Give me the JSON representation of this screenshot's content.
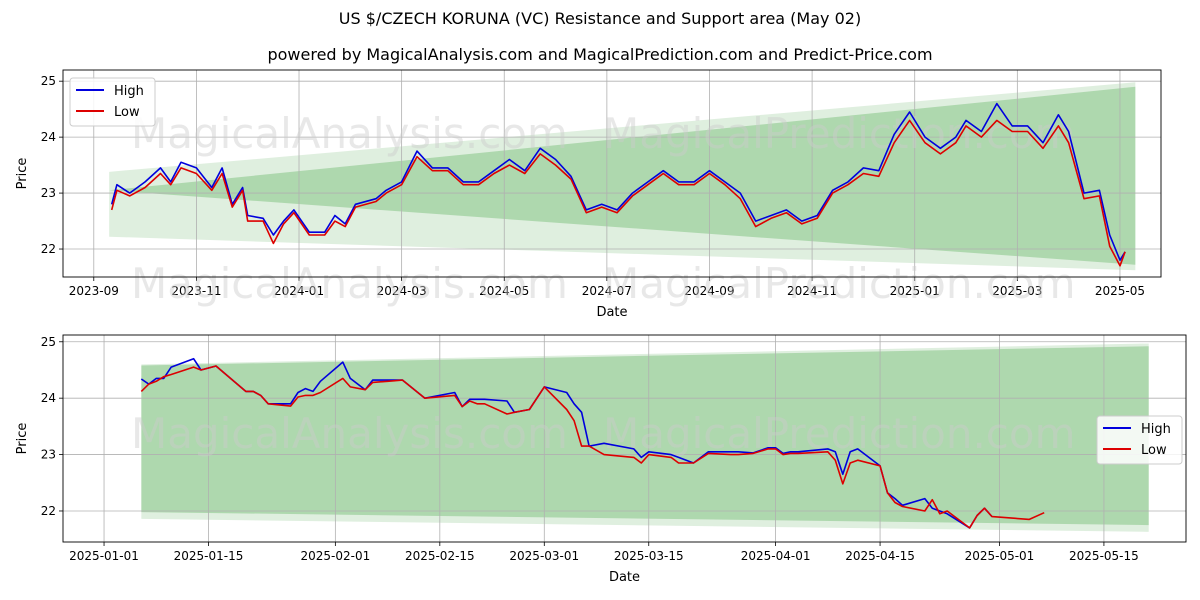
{
  "header": {
    "title": "US $/CZECH KORUNA (VC) Resistance and Support area (May 02)",
    "subtitle": "powered by MagicalAnalysis.com and MagicalPrediction.com and Predict-Price.com"
  },
  "watermarks": [
    "MagicalAnalysis.com",
    "MagicalPrediction.com",
    "MagicalAnalysis.com",
    "MagicalPrediction.com",
    "MagicalAnalysis.com",
    "MagicalPrediction.com"
  ],
  "colors": {
    "high": "#0000dd",
    "low": "#dd0000",
    "band_dark": "#7dc27d",
    "band_light": "#b9dcb9",
    "grid": "#b0b0b0"
  },
  "chart_data": [
    {
      "type": "line",
      "name": "top-chart",
      "xlabel": "Date",
      "ylabel": "Price",
      "x_ticks": [
        "2023-09",
        "2023-11",
        "2024-01",
        "2024-03",
        "2024-05",
        "2024-07",
        "2024-09",
        "2024-11",
        "2025-01",
        "2025-03",
        "2025-05"
      ],
      "y_ticks": [
        "22",
        "23",
        "24",
        "25"
      ],
      "ylim": [
        21.5,
        25.2
      ],
      "xlim_months": [
        -0.6,
        20.8
      ],
      "legend": {
        "position": "top-left",
        "entries": [
          "High",
          "Low"
        ]
      },
      "grid": true,
      "resistance_band": {
        "x_start": 0.3,
        "x_end": 20.3,
        "dark": {
          "upper": [
            23.05,
            24.9
          ],
          "lower": [
            23.05,
            21.72
          ]
        },
        "light": {
          "upper": [
            23.38,
            24.98
          ],
          "lower": [
            22.22,
            21.62
          ]
        }
      },
      "series": [
        {
          "name": "High",
          "x": [
            0.35,
            0.45,
            0.7,
            1.0,
            1.3,
            1.5,
            1.7,
            2.0,
            2.3,
            2.5,
            2.7,
            2.9,
            3.0,
            3.3,
            3.5,
            3.7,
            3.9,
            4.2,
            4.5,
            4.7,
            4.9,
            5.1,
            5.5,
            5.7,
            6.0,
            6.3,
            6.6,
            6.9,
            7.2,
            7.5,
            7.8,
            8.1,
            8.4,
            8.7,
            9.0,
            9.3,
            9.6,
            9.9,
            10.2,
            10.5,
            10.8,
            11.1,
            11.4,
            11.7,
            12.0,
            12.3,
            12.6,
            12.9,
            13.2,
            13.5,
            13.8,
            14.1,
            14.4,
            14.7,
            15.0,
            15.3,
            15.6,
            15.9,
            16.2,
            16.5,
            16.8,
            17.0,
            17.3,
            17.6,
            17.9,
            18.2,
            18.5,
            18.8,
            19.0,
            19.3,
            19.6,
            19.8,
            20.0,
            20.1
          ],
          "y": [
            22.8,
            23.15,
            23.0,
            23.2,
            23.45,
            23.2,
            23.55,
            23.45,
            23.1,
            23.45,
            22.8,
            23.1,
            22.6,
            22.55,
            22.25,
            22.5,
            22.7,
            22.3,
            22.3,
            22.6,
            22.45,
            22.8,
            22.9,
            23.05,
            23.2,
            23.75,
            23.45,
            23.45,
            23.2,
            23.2,
            23.4,
            23.6,
            23.4,
            23.8,
            23.6,
            23.3,
            22.7,
            22.8,
            22.7,
            23.0,
            23.2,
            23.4,
            23.2,
            23.2,
            23.4,
            23.2,
            23.0,
            22.5,
            22.6,
            22.7,
            22.5,
            22.6,
            23.05,
            23.2,
            23.45,
            23.4,
            24.05,
            24.45,
            24.0,
            23.8,
            24.0,
            24.3,
            24.1,
            24.6,
            24.2,
            24.2,
            23.9,
            24.4,
            24.1,
            23.0,
            23.05,
            22.25,
            21.8,
            21.95
          ]
        },
        {
          "name": "Low",
          "x": [
            0.35,
            0.45,
            0.7,
            1.0,
            1.3,
            1.5,
            1.7,
            2.0,
            2.3,
            2.5,
            2.7,
            2.9,
            3.0,
            3.3,
            3.5,
            3.7,
            3.9,
            4.2,
            4.5,
            4.7,
            4.9,
            5.1,
            5.5,
            5.7,
            6.0,
            6.3,
            6.6,
            6.9,
            7.2,
            7.5,
            7.8,
            8.1,
            8.4,
            8.7,
            9.0,
            9.3,
            9.6,
            9.9,
            10.2,
            10.5,
            10.8,
            11.1,
            11.4,
            11.7,
            12.0,
            12.3,
            12.6,
            12.9,
            13.2,
            13.5,
            13.8,
            14.1,
            14.4,
            14.7,
            15.0,
            15.3,
            15.6,
            15.9,
            16.2,
            16.5,
            16.8,
            17.0,
            17.3,
            17.6,
            17.9,
            18.2,
            18.5,
            18.8,
            19.0,
            19.3,
            19.6,
            19.8,
            20.0,
            20.1
          ],
          "y": [
            22.7,
            23.05,
            22.95,
            23.1,
            23.35,
            23.15,
            23.45,
            23.35,
            23.05,
            23.35,
            22.75,
            23.05,
            22.5,
            22.5,
            22.1,
            22.45,
            22.65,
            22.25,
            22.25,
            22.5,
            22.4,
            22.75,
            22.85,
            23.0,
            23.15,
            23.65,
            23.4,
            23.4,
            23.15,
            23.15,
            23.35,
            23.5,
            23.35,
            23.7,
            23.5,
            23.25,
            22.65,
            22.75,
            22.65,
            22.95,
            23.15,
            23.35,
            23.15,
            23.15,
            23.35,
            23.15,
            22.9,
            22.4,
            22.55,
            22.65,
            22.45,
            22.55,
            23.0,
            23.15,
            23.35,
            23.3,
            23.9,
            24.3,
            23.9,
            23.7,
            23.9,
            24.2,
            24.0,
            24.3,
            24.1,
            24.1,
            23.8,
            24.2,
            23.9,
            22.9,
            22.95,
            22.05,
            21.7,
            21.95
          ]
        }
      ]
    },
    {
      "type": "line",
      "name": "bottom-chart",
      "xlabel": "Date",
      "ylabel": "Price",
      "x_ticks": [
        "2025-01-01",
        "2025-01-15",
        "2025-02-01",
        "2025-02-15",
        "2025-03-01",
        "2025-03-15",
        "2025-04-01",
        "2025-04-15",
        "2025-05-01",
        "2025-05-15"
      ],
      "x_tick_days": [
        0,
        14,
        31,
        45,
        59,
        73,
        90,
        104,
        120,
        134
      ],
      "y_ticks": [
        "22",
        "23",
        "24",
        "25"
      ],
      "ylim": [
        21.45,
        25.12
      ],
      "xlim_days": [
        -5.5,
        145
      ],
      "legend": {
        "position": "center-right",
        "entries": [
          "High",
          "Low"
        ]
      },
      "grid": true,
      "resistance_band": {
        "x_start": 5,
        "x_end": 140,
        "dark": {
          "upper": [
            24.58,
            24.92
          ],
          "lower": [
            21.98,
            21.75
          ]
        },
        "light": {
          "upper": [
            24.6,
            24.97
          ],
          "lower": [
            21.86,
            21.63
          ]
        }
      },
      "series": [
        {
          "name": "High",
          "x": [
            5,
            6,
            7,
            8,
            9,
            12,
            13,
            15,
            19,
            20,
            21,
            22,
            25,
            26,
            27,
            28,
            29,
            32,
            33,
            35,
            36,
            38,
            40,
            43,
            47,
            48,
            49,
            50,
            51,
            54,
            55,
            57,
            59,
            62,
            63,
            64,
            65,
            67,
            71,
            72,
            73,
            76,
            77,
            79,
            81,
            84,
            85,
            87,
            89,
            90,
            91,
            92,
            93,
            97,
            98,
            99,
            100,
            101,
            104,
            105,
            106,
            107,
            110,
            111,
            112,
            113,
            116,
            117,
            118,
            119
          ],
          "y": [
            24.34,
            24.25,
            24.35,
            24.35,
            24.55,
            24.7,
            24.5,
            24.57,
            24.12,
            24.12,
            24.05,
            23.9,
            23.9,
            24.1,
            24.17,
            24.12,
            24.3,
            24.64,
            24.35,
            24.15,
            24.32,
            24.32,
            24.32,
            24.0,
            24.1,
            23.85,
            23.98,
            23.98,
            23.98,
            23.95,
            23.75,
            23.8,
            24.2,
            24.1,
            23.9,
            23.75,
            23.15,
            23.2,
            23.1,
            22.95,
            23.05,
            23.0,
            22.95,
            22.85,
            23.05,
            23.05,
            23.05,
            23.03,
            23.12,
            23.12,
            23.02,
            23.05,
            23.05,
            23.1,
            23.05,
            22.65,
            23.05,
            23.1,
            22.8,
            22.32,
            22.22,
            22.1,
            22.22,
            22.05,
            22.0,
            21.95,
            21.7,
            21.92,
            22.05,
            21.9
          ]
        },
        {
          "name": "Low",
          "x": [
            5,
            6,
            7,
            8,
            9,
            12,
            13,
            15,
            19,
            20,
            21,
            22,
            25,
            26,
            27,
            28,
            29,
            32,
            33,
            35,
            36,
            38,
            40,
            43,
            47,
            48,
            49,
            50,
            51,
            54,
            55,
            57,
            59,
            62,
            63,
            64,
            65,
            67,
            71,
            72,
            73,
            76,
            77,
            79,
            81,
            84,
            85,
            87,
            89,
            90,
            91,
            92,
            93,
            97,
            98,
            99,
            100,
            101,
            104,
            105,
            106,
            107,
            110,
            111,
            112,
            113,
            116,
            117,
            118,
            119,
            124,
            126
          ],
          "y": [
            24.12,
            24.25,
            24.3,
            24.38,
            24.42,
            24.55,
            24.5,
            24.57,
            24.12,
            24.12,
            24.05,
            23.9,
            23.86,
            24.02,
            24.05,
            24.05,
            24.1,
            24.35,
            24.2,
            24.15,
            24.28,
            24.3,
            24.32,
            24.0,
            24.05,
            23.85,
            23.95,
            23.9,
            23.9,
            23.72,
            23.75,
            23.8,
            24.2,
            23.8,
            23.6,
            23.15,
            23.15,
            23.0,
            22.95,
            22.85,
            23.0,
            22.95,
            22.85,
            22.85,
            23.02,
            23.0,
            23.0,
            23.02,
            23.1,
            23.1,
            23.0,
            23.02,
            23.02,
            23.05,
            22.9,
            22.48,
            22.85,
            22.9,
            22.8,
            22.32,
            22.15,
            22.08,
            22.0,
            22.2,
            21.95,
            22.0,
            21.7,
            21.92,
            22.05,
            21.9,
            21.85,
            21.97
          ]
        }
      ]
    }
  ]
}
